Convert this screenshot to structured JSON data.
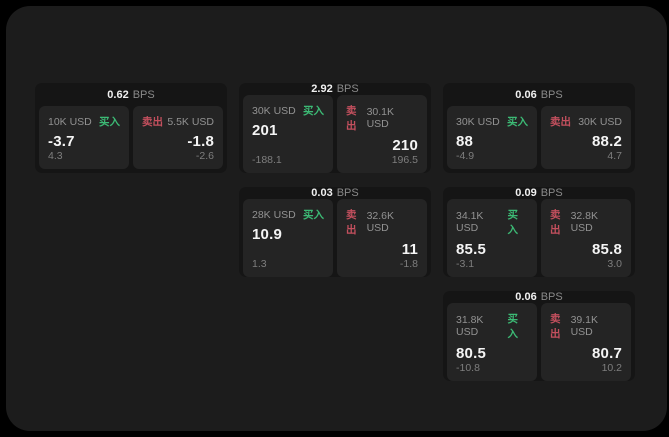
{
  "labels": {
    "bps": "BPS",
    "buy": "买入",
    "sell": "卖出"
  },
  "colors": {
    "buy_green": "#3cba75",
    "sell_red": "#c4505e",
    "panel_bg": "#1c1c1c",
    "card_bg": "#151515",
    "subpanel_bg": "#242424"
  },
  "cards": [
    {
      "col": 1,
      "row": 1,
      "bps": "0.62",
      "buy": {
        "amount": "10K USD",
        "value": "-3.7",
        "delta": "4.3"
      },
      "sell": {
        "amount": "5.5K USD",
        "value": "-1.8",
        "delta": "-2.6"
      }
    },
    {
      "col": 2,
      "row": 1,
      "bps": "2.92",
      "buy": {
        "amount": "30K USD",
        "value": "201",
        "delta": "-188.1"
      },
      "sell": {
        "amount": "30.1K USD",
        "value": "210",
        "delta": "196.5"
      }
    },
    {
      "col": 3,
      "row": 1,
      "bps": "0.06",
      "buy": {
        "amount": "30K USD",
        "value": "88",
        "delta": "-4.9"
      },
      "sell": {
        "amount": "30K USD",
        "value": "88.2",
        "delta": "4.7"
      }
    },
    {
      "col": 2,
      "row": 2,
      "bps": "0.03",
      "buy": {
        "amount": "28K USD",
        "value": "10.9",
        "delta": "1.3"
      },
      "sell": {
        "amount": "32.6K USD",
        "value": "11",
        "delta": "-1.8"
      }
    },
    {
      "col": 3,
      "row": 2,
      "bps": "0.09",
      "buy": {
        "amount": "34.1K USD",
        "value": "85.5",
        "delta": "-3.1"
      },
      "sell": {
        "amount": "32.8K USD",
        "value": "85.8",
        "delta": "3.0"
      }
    },
    {
      "col": 3,
      "row": 3,
      "bps": "0.06",
      "buy": {
        "amount": "31.8K USD",
        "value": "80.5",
        "delta": "-10.8"
      },
      "sell": {
        "amount": "39.1K USD",
        "value": "80.7",
        "delta": "10.2"
      }
    }
  ]
}
